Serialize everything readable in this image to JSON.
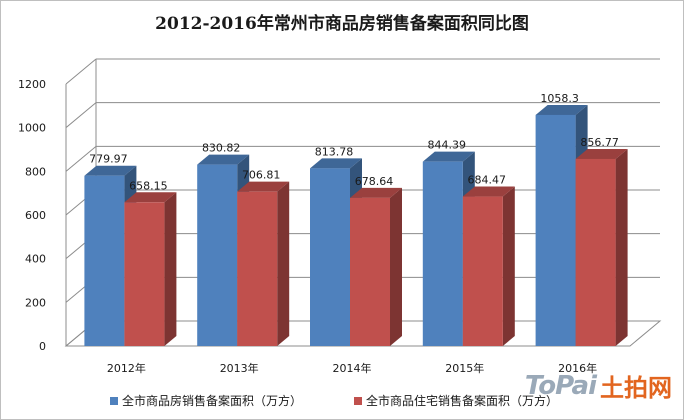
{
  "chart_data": {
    "type": "bar",
    "title": "2012-2016年常州市商品房销售备案面积同比图",
    "categories": [
      "2012年",
      "2013年",
      "2014年",
      "2015年",
      "2016年"
    ],
    "series": [
      {
        "name": "全市商品房销售备案面积（万方）",
        "values": [
          779.97,
          830.82,
          813.78,
          844.39,
          1058.3
        ],
        "labels": [
          "779.97",
          "830.82",
          "813.78",
          "844.39",
          "1058.3"
        ]
      },
      {
        "name": "全市商品住宅销售备案面积（万方）",
        "values": [
          658.15,
          706.81,
          678.64,
          684.47,
          856.77
        ],
        "labels": [
          "658.15",
          "706.81",
          "678.64",
          "684.47",
          "856.77"
        ]
      }
    ],
    "yticks": [
      "0",
      "200",
      "400",
      "600",
      "800",
      "1000",
      "1200"
    ],
    "ylim": [
      0,
      1200
    ],
    "grid": true,
    "legend_position": "bottom",
    "xlabel": "",
    "ylabel": ""
  },
  "colors": {
    "series_1": "#4f81bd",
    "series_2": "#c0504d",
    "grid": "#8c8c8c"
  },
  "watermark": {
    "latin": "ToPai",
    "cjk": "土拍网"
  }
}
